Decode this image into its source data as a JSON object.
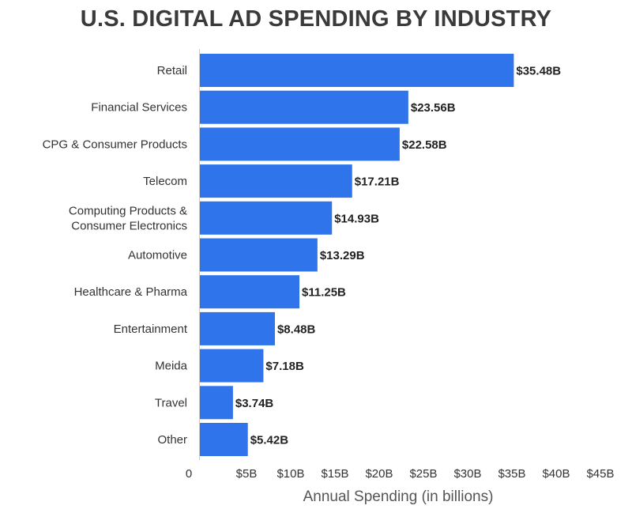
{
  "chart_data": {
    "type": "bar",
    "orientation": "horizontal",
    "title": "U.S. DIGITAL AD SPENDING BY INDUSTRY",
    "xlabel": "Annual Spending (in billions)",
    "ylabel": "",
    "categories": [
      "Retail",
      "Financial Services",
      "CPG & Consumer Products",
      "Telecom",
      "Computing Products &\nConsumer Electronics",
      "Automotive",
      "Healthcare & Pharma",
      "Entertainment",
      "Meida",
      "Travel",
      "Other"
    ],
    "values": [
      35.48,
      23.56,
      22.58,
      17.21,
      14.93,
      13.29,
      11.25,
      8.48,
      7.18,
      3.74,
      5.42
    ],
    "data_labels": [
      "$35.48B",
      "$23.56B",
      "$22.58B",
      "$17.21B",
      "$14.93B",
      "$13.29B",
      "$11.25B",
      "$8.48B",
      "$7.18B",
      "$3.74B",
      "$5.42B"
    ],
    "xticks": [
      0,
      5,
      10,
      15,
      20,
      25,
      30,
      35,
      40,
      45
    ],
    "xtick_labels": [
      "0",
      "$5B",
      "$10B",
      "$15B",
      "$20B",
      "$25B",
      "$30B",
      "$35B",
      "$40B",
      "$45B"
    ],
    "xlim": [
      0,
      45
    ],
    "grid": false,
    "legend": "none",
    "colors": {
      "bar": "#2f74eb",
      "text": "#333333",
      "title": "#3a3a3a",
      "axis": "#cccccc"
    }
  }
}
